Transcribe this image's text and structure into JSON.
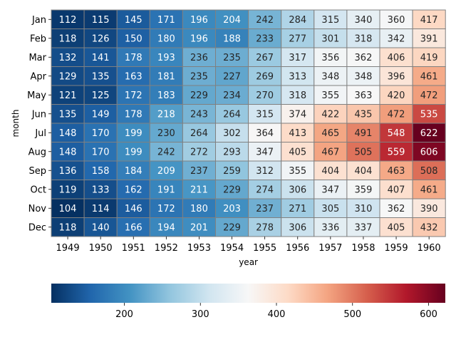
{
  "chart_data": {
    "type": "heatmap",
    "title": "",
    "xlabel": "year",
    "ylabel": "month",
    "x": [
      "1949",
      "1950",
      "1951",
      "1952",
      "1953",
      "1954",
      "1955",
      "1956",
      "1957",
      "1958",
      "1959",
      "1960"
    ],
    "y": [
      "Jan",
      "Feb",
      "Mar",
      "Apr",
      "May",
      "Jun",
      "Jul",
      "Aug",
      "Sep",
      "Oct",
      "Nov",
      "Dec"
    ],
    "values": [
      [
        112,
        115,
        145,
        171,
        196,
        204,
        242,
        284,
        315,
        340,
        360,
        417
      ],
      [
        118,
        126,
        150,
        180,
        196,
        188,
        233,
        277,
        301,
        318,
        342,
        391
      ],
      [
        132,
        141,
        178,
        193,
        236,
        235,
        267,
        317,
        356,
        362,
        406,
        419
      ],
      [
        129,
        135,
        163,
        181,
        235,
        227,
        269,
        313,
        348,
        348,
        396,
        461
      ],
      [
        121,
        125,
        172,
        183,
        229,
        234,
        270,
        318,
        355,
        363,
        420,
        472
      ],
      [
        135,
        149,
        178,
        218,
        243,
        264,
        315,
        374,
        422,
        435,
        472,
        535
      ],
      [
        148,
        170,
        199,
        230,
        264,
        302,
        364,
        413,
        465,
        491,
        548,
        622
      ],
      [
        148,
        170,
        199,
        242,
        272,
        293,
        347,
        405,
        467,
        505,
        559,
        606
      ],
      [
        136,
        158,
        184,
        209,
        237,
        259,
        312,
        355,
        404,
        404,
        463,
        508
      ],
      [
        119,
        133,
        162,
        191,
        211,
        229,
        274,
        306,
        347,
        359,
        407,
        461
      ],
      [
        104,
        114,
        146,
        172,
        180,
        203,
        237,
        271,
        305,
        310,
        362,
        390
      ],
      [
        118,
        140,
        166,
        194,
        201,
        229,
        278,
        306,
        336,
        337,
        405,
        432
      ]
    ],
    "colormap": "RdBu_r",
    "vmin": 104,
    "vmax": 622,
    "annotate": true,
    "cell_border_color": "#808080",
    "colorbar": {
      "orientation": "horizontal",
      "location": "bottom",
      "ticks": [
        "200",
        "300",
        "400",
        "500",
        "600"
      ]
    }
  }
}
